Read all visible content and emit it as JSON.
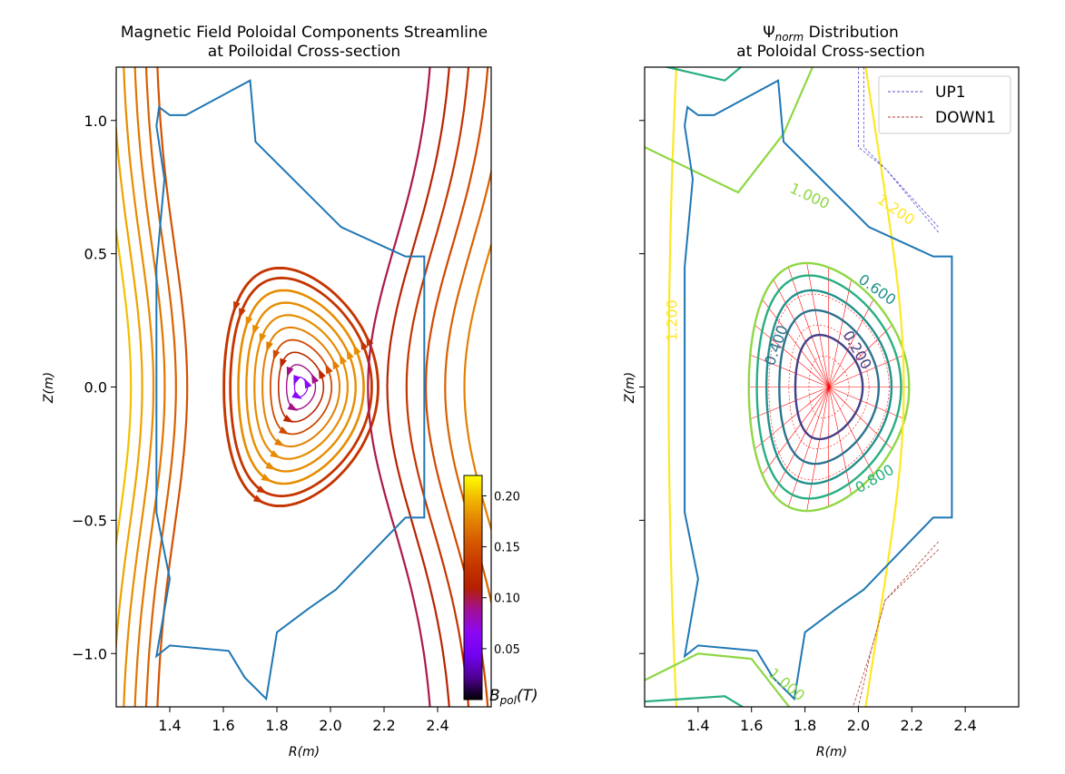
{
  "chart_data": [
    {
      "type": "streamline",
      "title_line1": "Magnetic Field Poloidal Components Streamline",
      "title_line2": "at Poiloidal Cross-section",
      "xlabel": "R(m)",
      "ylabel": "Z(m)",
      "xlim": [
        1.2,
        2.6
      ],
      "ylim": [
        -1.2,
        1.2
      ],
      "xticks": [
        1.4,
        1.6,
        1.8,
        2.0,
        2.2,
        2.4
      ],
      "xtick_labels": [
        "1.4",
        "1.6",
        "1.8",
        "2.0",
        "2.2",
        "2.4"
      ],
      "yticks": [
        -1.0,
        -0.5,
        0.0,
        0.5,
        1.0
      ],
      "ytick_labels": [
        "−1.0",
        "−0.5",
        "0.0",
        "0.5",
        "1.0"
      ],
      "magnetic_axis": [
        1.89,
        0.0
      ],
      "colormap": "gnuplot",
      "colorbar": {
        "label": "B_pol(T)",
        "label_main": "B",
        "label_sub": "pol",
        "label_unit": "(T)",
        "range": [
          0.0,
          0.22
        ],
        "ticks": [
          0.05,
          0.1,
          0.15,
          0.2
        ],
        "tick_labels": [
          "0.05",
          "0.10",
          "0.15",
          "0.20"
        ]
      },
      "wall_outline_color": "#1f77b4"
    },
    {
      "type": "contour",
      "title_main": "Ψ",
      "title_sub": "norm",
      "title_rest": " Distribution",
      "title_line2": "at Poloidal Cross-section",
      "xlabel": "R(m)",
      "ylabel": "Z(m)",
      "xlim": [
        1.2,
        2.6
      ],
      "ylim": [
        -1.2,
        1.2
      ],
      "xticks": [
        1.4,
        1.6,
        1.8,
        2.0,
        2.2,
        2.4
      ],
      "xtick_labels": [
        "1.4",
        "1.6",
        "1.8",
        "2.0",
        "2.2",
        "2.4"
      ],
      "contour_levels": [
        0.2,
        0.4,
        0.6,
        0.8,
        1.0,
        1.2
      ],
      "contour_labels": [
        {
          "level": 0.2,
          "text": "0.200"
        },
        {
          "level": 0.4,
          "text": "0.400"
        },
        {
          "level": 0.6,
          "text": "0.600"
        },
        {
          "level": 0.8,
          "text": "0.800"
        },
        {
          "level": 1.0,
          "text": "1.000"
        },
        {
          "level": 1.2,
          "text": "1.200"
        }
      ],
      "level_colors": [
        "#433e85",
        "#2c728e",
        "#21918c",
        "#28ae80",
        "#8fd744",
        "#fde725"
      ],
      "legend": {
        "placement": "top-right",
        "entries": [
          {
            "label": "UP1",
            "color": "#5a4fcf",
            "style": "dashed"
          },
          {
            "label": "DOWN1",
            "color": "#b03a2e",
            "style": "dashed"
          }
        ]
      },
      "psi_grid_color": "#ff0000",
      "wall_outline_color": "#1f77b4"
    }
  ]
}
